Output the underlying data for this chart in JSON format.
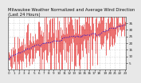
{
  "background_color": "#e8e8e8",
  "plot_bg_color": "#ffffff",
  "grid_color": "#bbbbbb",
  "bar_color": "#dd0000",
  "line_color": "#0000dd",
  "n_points": 144,
  "y_min": 0,
  "y_max": 40,
  "ytick_values": [
    5,
    10,
    15,
    20,
    25,
    30,
    35
  ],
  "title": "Milwaukee Weather Normalized and Average Wind Direction (Last 24 Hours)",
  "title_fontsize": 3.8,
  "tick_fontsize": 3.0,
  "seed": 17
}
